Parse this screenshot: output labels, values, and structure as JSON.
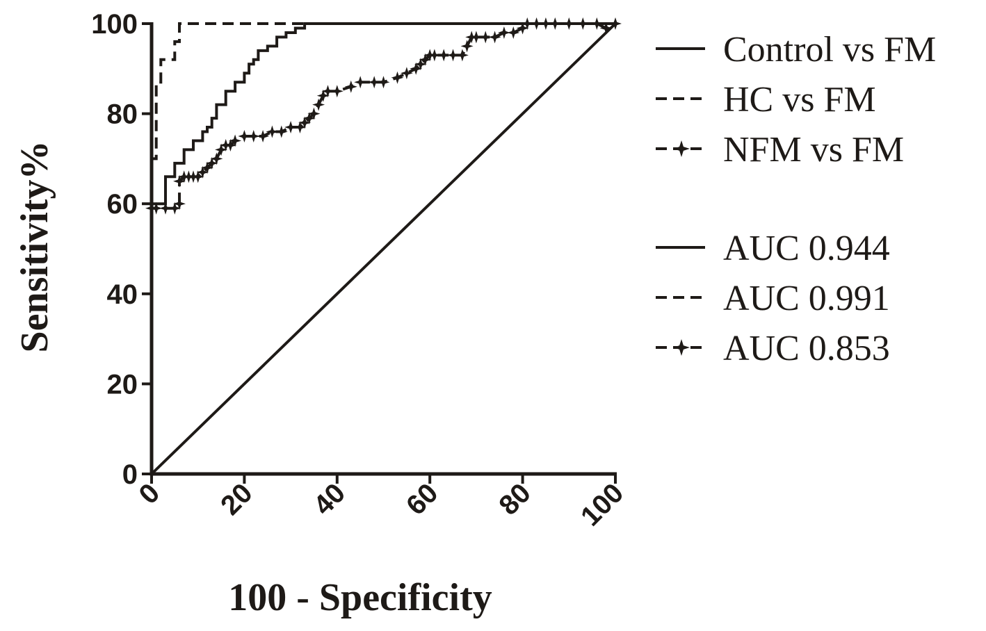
{
  "chart_data": {
    "type": "line",
    "title": "",
    "xlabel": "100 - Specificity",
    "ylabel": "Sensitivity%",
    "xlim": [
      0,
      100
    ],
    "ylim": [
      0,
      100
    ],
    "xticks": [
      "0",
      "20",
      "40",
      "60",
      "80",
      "100"
    ],
    "yticks": [
      "0",
      "20",
      "40",
      "60",
      "80",
      "100"
    ],
    "grid": false,
    "legend_position": "right",
    "reference_line": {
      "x": [
        0,
        100
      ],
      "y": [
        0,
        100
      ],
      "style": "solid"
    },
    "series": [
      {
        "name": "Control vs FM",
        "auc_label": "AUC 0.944",
        "style": "solid",
        "markers": false,
        "x": [
          0,
          0,
          3,
          3,
          5,
          5,
          7,
          7,
          9,
          9,
          11,
          11,
          12,
          12,
          13,
          13,
          14,
          14,
          16,
          16,
          18,
          18,
          20,
          20,
          21,
          21,
          22,
          22,
          23,
          23,
          25,
          25,
          27,
          27,
          29,
          29,
          31,
          31,
          33,
          33,
          100
        ],
        "y": [
          0,
          60,
          60,
          66,
          66,
          69,
          69,
          72,
          72,
          74,
          74,
          76,
          76,
          77,
          77,
          79,
          79,
          82,
          82,
          85,
          85,
          87,
          87,
          89,
          89,
          91,
          91,
          92,
          92,
          94,
          94,
          95,
          95,
          97,
          97,
          98,
          98,
          99,
          99,
          100,
          100
        ]
      },
      {
        "name": "HC vs FM",
        "auc_label": "AUC 0.991",
        "style": "dashed",
        "markers": false,
        "x": [
          0,
          0,
          1,
          1,
          2,
          2,
          5,
          5,
          6,
          6,
          100
        ],
        "y": [
          0,
          70,
          70,
          87,
          87,
          92,
          92,
          96,
          96,
          100,
          100
        ]
      },
      {
        "name": "NFM vs FM",
        "auc_label": "AUC 0.853",
        "style": "dashed",
        "markers": true,
        "x": [
          0,
          0,
          1,
          3,
          5,
          6,
          6,
          7,
          8,
          9,
          10,
          11,
          12,
          13,
          14,
          15,
          16,
          17,
          18,
          20,
          22,
          24,
          26,
          28,
          30,
          32,
          33,
          34,
          35,
          36,
          37,
          38,
          40,
          43,
          45,
          48,
          50,
          53,
          55,
          57,
          58,
          59,
          60,
          61,
          63,
          65,
          67,
          68,
          69,
          70,
          72,
          74,
          76,
          78,
          80,
          81,
          83,
          85,
          87,
          90,
          93,
          96,
          98,
          100
        ],
        "y": [
          0,
          59,
          59,
          59,
          59,
          60,
          65,
          66,
          66,
          66,
          66,
          67,
          68,
          69,
          70,
          72,
          73,
          73,
          74,
          75,
          75,
          75,
          76,
          76,
          77,
          77,
          78,
          79,
          80,
          82,
          84,
          85,
          85,
          86,
          87,
          87,
          87,
          88,
          89,
          90,
          91,
          92,
          93,
          93,
          93,
          93,
          93,
          95,
          97,
          97,
          97,
          97,
          98,
          98,
          99,
          100,
          100,
          100,
          100,
          100,
          100,
          100,
          99,
          100
        ]
      }
    ]
  }
}
